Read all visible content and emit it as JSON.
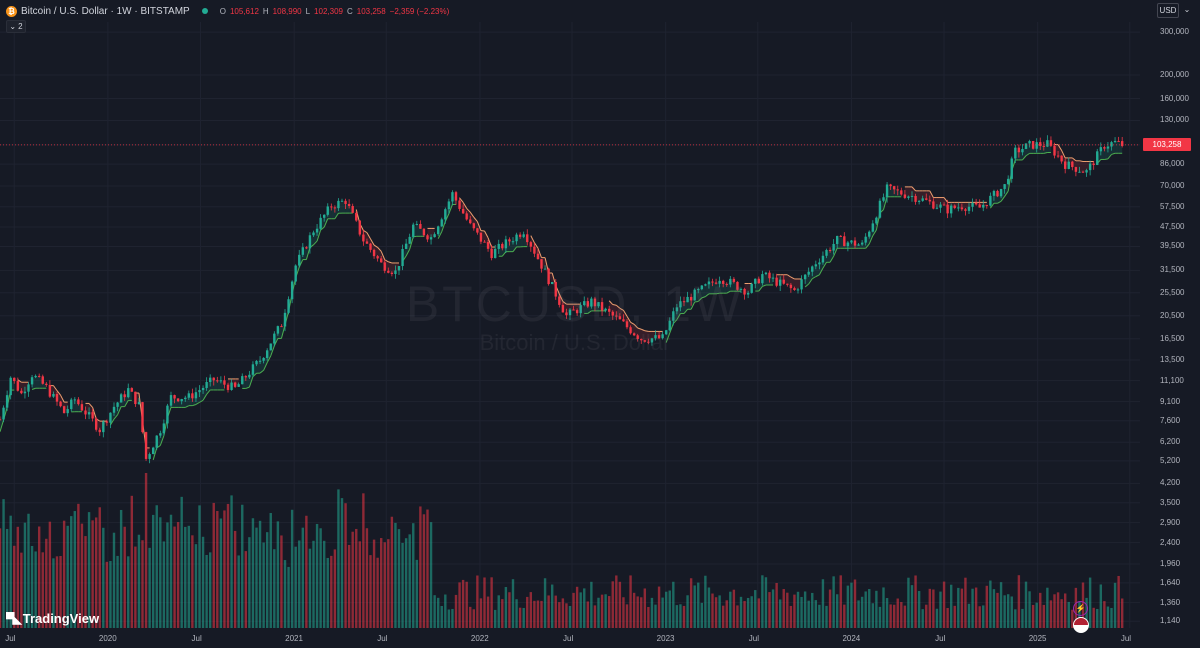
{
  "header": {
    "coin_icon_glyph": "₿",
    "symbol_title": "Bitcoin / U.S. Dollar · 1W · BITSTAMP",
    "ohlc": [
      {
        "key": "O",
        "value": "105,612"
      },
      {
        "key": "H",
        "value": "108,990"
      },
      {
        "key": "L",
        "value": "102,309"
      },
      {
        "key": "C",
        "value": "103,258"
      }
    ],
    "change": "−2,359 (−2.23%)",
    "indicator_count": "2",
    "chevron_glyph": "⌄"
  },
  "currency": {
    "label": "USD",
    "caret_glyph": "⌄"
  },
  "watermark": {
    "ticker": "BTCUSD, 1W",
    "name": "Bitcoin / U.S. Dollar"
  },
  "logo": {
    "mark": "▀◣",
    "text": "TradingView"
  },
  "last_price_tag": "103,258",
  "event_icons": {
    "bolt": "⚡",
    "flag": "★"
  },
  "colors": {
    "background": "#161a25",
    "grid": "#1f2330",
    "up": "#22ab94",
    "down": "#f23645",
    "up_fill": "rgba(34,171,148,0.15)",
    "down_fill": "rgba(242,54,69,0.15)",
    "supertrend_up": "#4caf50",
    "supertrend_down": "#f0a070",
    "vol_up": "rgba(34,171,148,0.55)",
    "vol_down": "rgba(242,54,69,0.55)"
  },
  "chart_data": {
    "type": "candlestick",
    "y_scale": "log",
    "y_range": [
      1070,
      330000
    ],
    "y_ticks": [
      300000,
      200000,
      160000,
      130000,
      103258,
      86000,
      70000,
      57500,
      47500,
      39500,
      31500,
      25500,
      20500,
      16500,
      13500,
      11100,
      9100,
      7600,
      6200,
      5200,
      4200,
      3500,
      2900,
      2400,
      1960,
      1640,
      1360,
      1140
    ],
    "y_tick_labels": [
      "300,000",
      "200,000",
      "160,000",
      "130,000",
      "103,258",
      "86,000",
      "70,000",
      "57,500",
      "47,500",
      "39,500",
      "31,500",
      "25,500",
      "20,500",
      "16,500",
      "13,500",
      "11,100",
      "9,100",
      "7,600",
      "6,200",
      "5,200",
      "4,200",
      "3,500",
      "2,900",
      "2,400",
      "1,960",
      "1,640",
      "1,360",
      "1,140"
    ],
    "x_range": [
      "2019-06-03",
      "2025-07-21"
    ],
    "x_ticks": [
      {
        "date": "2019-07-01",
        "label": "Jul"
      },
      {
        "date": "2020-01-01",
        "label": "2020"
      },
      {
        "date": "2020-07-01",
        "label": "Jul"
      },
      {
        "date": "2021-01-01",
        "label": "2021"
      },
      {
        "date": "2021-07-01",
        "label": "Jul"
      },
      {
        "date": "2022-01-01",
        "label": "2022"
      },
      {
        "date": "2022-07-01",
        "label": "Jul"
      },
      {
        "date": "2023-01-01",
        "label": "2023"
      },
      {
        "date": "2023-07-01",
        "label": "Jul"
      },
      {
        "date": "2024-01-01",
        "label": "2024"
      },
      {
        "date": "2024-07-01",
        "label": "Jul"
      },
      {
        "date": "2025-01-01",
        "label": "2025"
      },
      {
        "date": "2025-07-01",
        "label": "Jul"
      }
    ],
    "last_close": 103258,
    "price_path": [
      [
        "2019-06-03",
        7700
      ],
      [
        "2019-06-24",
        11500
      ],
      [
        "2019-07-15",
        9800
      ],
      [
        "2019-08-05",
        11800
      ],
      [
        "2019-09-02",
        10400
      ],
      [
        "2019-10-07",
        8200
      ],
      [
        "2019-10-28",
        9300
      ],
      [
        "2019-12-16",
        7000
      ],
      [
        "2020-01-13",
        8700
      ],
      [
        "2020-02-10",
        10200
      ],
      [
        "2020-03-02",
        8800
      ],
      [
        "2020-03-16",
        5300
      ],
      [
        "2020-04-13",
        7000
      ],
      [
        "2020-05-04",
        9500
      ],
      [
        "2020-06-08",
        9500
      ],
      [
        "2020-07-27",
        11200
      ],
      [
        "2020-09-07",
        10300
      ],
      [
        "2020-10-26",
        13500
      ],
      [
        "2020-12-07",
        19000
      ],
      [
        "2021-01-04",
        33000
      ],
      [
        "2021-02-08",
        46000
      ],
      [
        "2021-03-15",
        58000
      ],
      [
        "2021-04-12",
        61000
      ],
      [
        "2021-05-17",
        42000
      ],
      [
        "2021-06-21",
        33500
      ],
      [
        "2021-07-19",
        31000
      ],
      [
        "2021-08-23",
        48000
      ],
      [
        "2021-09-27",
        43000
      ],
      [
        "2021-11-08",
        65000
      ],
      [
        "2021-12-13",
        48000
      ],
      [
        "2022-01-24",
        37000
      ],
      [
        "2022-03-28",
        46000
      ],
      [
        "2022-05-09",
        31000
      ],
      [
        "2022-06-20",
        20500
      ],
      [
        "2022-08-08",
        23500
      ],
      [
        "2022-10-03",
        19500
      ],
      [
        "2022-11-14",
        16500
      ],
      [
        "2022-12-26",
        16600
      ],
      [
        "2023-01-23",
        22500
      ],
      [
        "2023-03-27",
        27500
      ],
      [
        "2023-04-17",
        29500
      ],
      [
        "2023-06-12",
        25800
      ],
      [
        "2023-07-10",
        30200
      ],
      [
        "2023-09-11",
        26000
      ],
      [
        "2023-10-23",
        34000
      ],
      [
        "2023-12-04",
        42000
      ],
      [
        "2024-01-22",
        40000
      ],
      [
        "2024-03-11",
        68000
      ],
      [
        "2024-05-06",
        63000
      ],
      [
        "2024-07-08",
        56000
      ],
      [
        "2024-08-05",
        58000
      ],
      [
        "2024-09-09",
        57000
      ],
      [
        "2024-10-28",
        70000
      ],
      [
        "2024-11-18",
        97000
      ],
      [
        "2024-12-16",
        103000
      ],
      [
        "2025-01-20",
        104000
      ],
      [
        "2025-02-24",
        86000
      ],
      [
        "2025-04-07",
        80000
      ],
      [
        "2025-05-12",
        103000
      ],
      [
        "2025-06-02",
        105612
      ],
      [
        "2025-06-16",
        103258
      ]
    ]
  }
}
